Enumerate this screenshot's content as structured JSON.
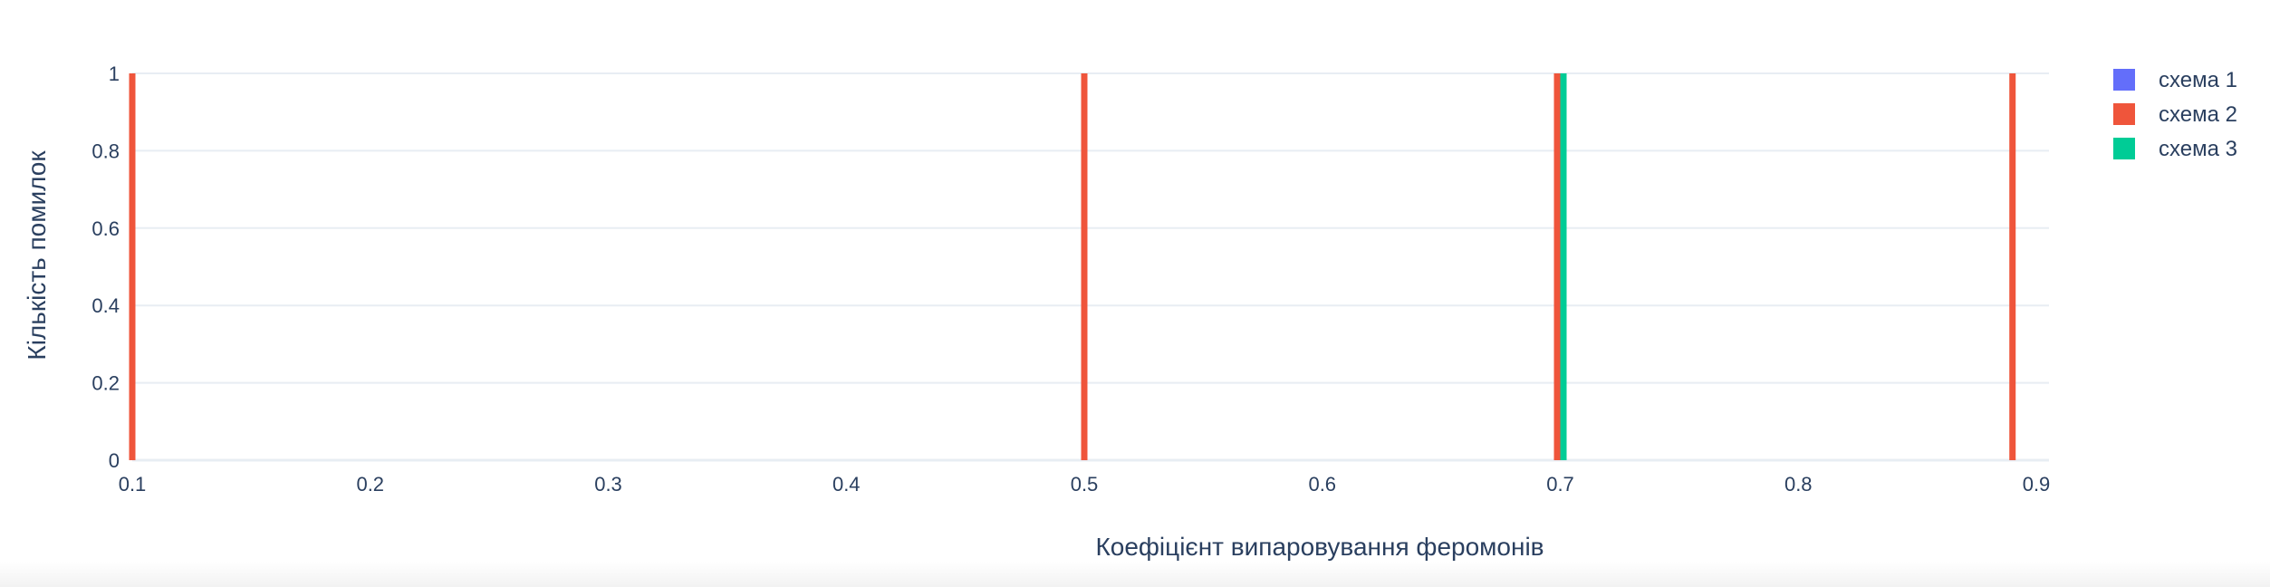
{
  "chart_data": {
    "type": "bar",
    "title": "",
    "xlabel": "Коефіцієнт випаровування феромонів",
    "ylabel": "Кількість помилок",
    "xlim": [
      0.1,
      0.9
    ],
    "ylim": [
      0,
      1
    ],
    "x_ticks": [
      "0.1",
      "0.2",
      "0.3",
      "0.4",
      "0.5",
      "0.6",
      "0.7",
      "0.8",
      "0.9"
    ],
    "y_ticks": [
      "0",
      "0.2",
      "0.4",
      "0.6",
      "0.8",
      "1"
    ],
    "grid": true,
    "legend_position": "top-right",
    "series": [
      {
        "name": "схема 1",
        "color": "#636efa",
        "points": []
      },
      {
        "name": "схема 2",
        "color": "#ef553b",
        "points": [
          {
            "x": 0.1,
            "y": 1
          },
          {
            "x": 0.5,
            "y": 1
          },
          {
            "x": 0.7,
            "y": 1
          },
          {
            "x": 0.89,
            "y": 1
          }
        ]
      },
      {
        "name": "схема 3",
        "color": "#00cc96",
        "points": [
          {
            "x": 0.7,
            "y": 1
          }
        ]
      }
    ]
  },
  "colors": {
    "text": "#2a3f5f",
    "grid": "#e8edf3",
    "zeroline": "#e8edf3"
  }
}
